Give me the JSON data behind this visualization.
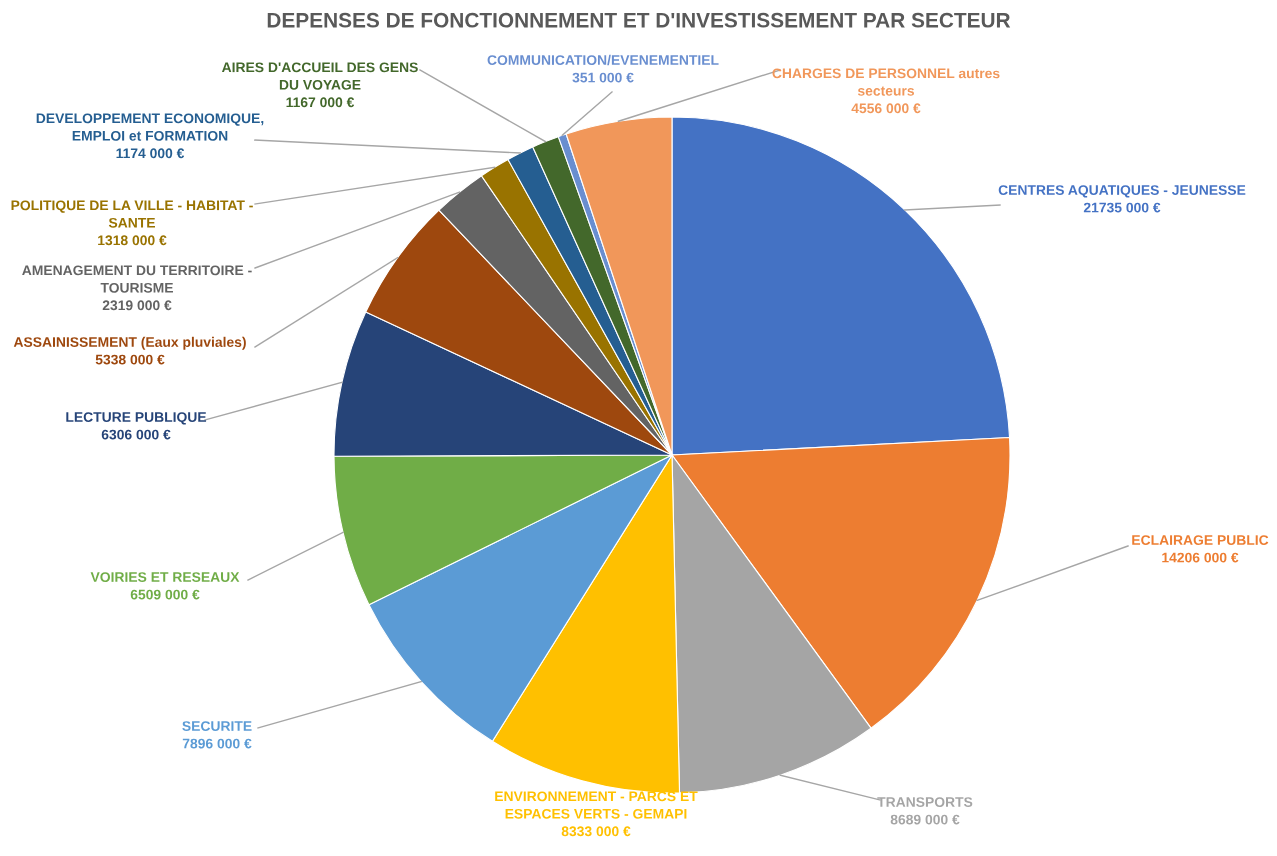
{
  "chart_data": {
    "type": "pie",
    "title": "DEPENSES DE FONCTIONNEMENT ET D'INVESTISSEMENT PAR SECTEUR",
    "categories": [
      "CENTRES AQUATIQUES - JEUNESSE",
      "ECLAIRAGE PUBLIC",
      "TRANSPORTS",
      "ENVIRONNEMENT - PARCS ET\nESPACES VERTS - GEMAPI",
      "SECURITE",
      "VOIRIES ET RESEAUX",
      "LECTURE PUBLIQUE",
      "ASSAINISSEMENT (Eaux pluviales)",
      "AMENAGEMENT DU TERRITOIRE -\nTOURISME",
      "POLITIQUE DE LA VILLE - HABITAT -\nSANTE",
      "DEVELOPPEMENT ECONOMIQUE,\nEMPLOI et FORMATION",
      "AIRES D'ACCUEIL DES GENS\nDU VOYAGE",
      "COMMUNICATION/EVENEMENTIEL",
      "CHARGES DE PERSONNEL autres\nsecteurs"
    ],
    "values": [
      21735000,
      14206000,
      8689000,
      8333000,
      7896000,
      6509000,
      6306000,
      5338000,
      2319000,
      1318000,
      1174000,
      1167000,
      351000,
      4556000
    ],
    "value_labels": [
      "21735 000 €",
      "14206 000 €",
      "8689 000 €",
      "8333 000 €",
      "7896 000 €",
      "6509 000 €",
      "6306 000 €",
      "5338 000 €",
      "2319 000 €",
      "1318 000 €",
      "1174 000 €",
      "1167 000 €",
      "351 000 €",
      "4556 000 €"
    ],
    "colors": [
      "#4472c4",
      "#ed7d31",
      "#a5a5a5",
      "#ffc000",
      "#5b9bd5",
      "#70ad47",
      "#264478",
      "#9e480e",
      "#636363",
      "#997300",
      "#255e91",
      "#43682b",
      "#698ed0",
      "#f1975a"
    ]
  }
}
